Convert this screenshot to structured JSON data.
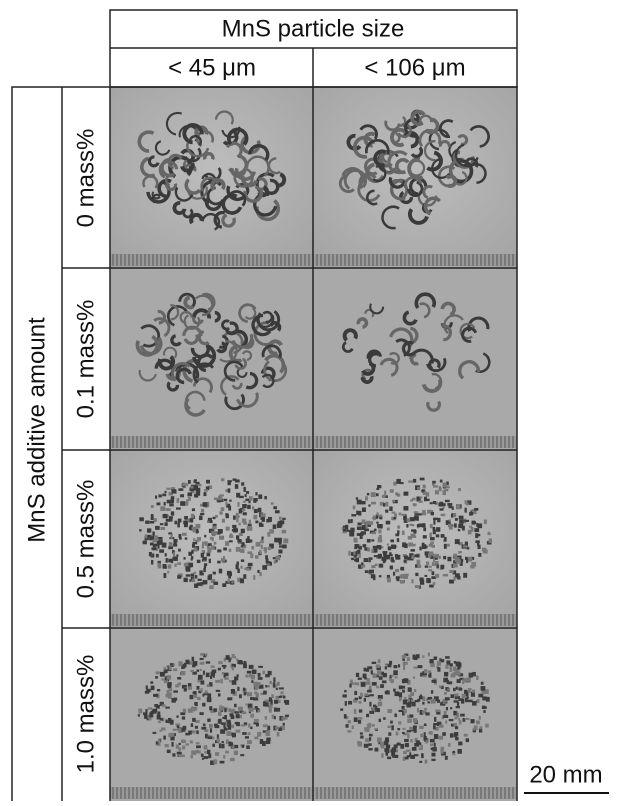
{
  "header": {
    "title": "MnS particle size",
    "columns": [
      "< 45 μm",
      "< 106 μm"
    ]
  },
  "rows_label": "MnS additive amount",
  "rows": [
    "0 mass%",
    "0.1 mass%",
    "0.5 mass%",
    "1.0 mass%"
  ],
  "scale_bar": "20 mm"
}
